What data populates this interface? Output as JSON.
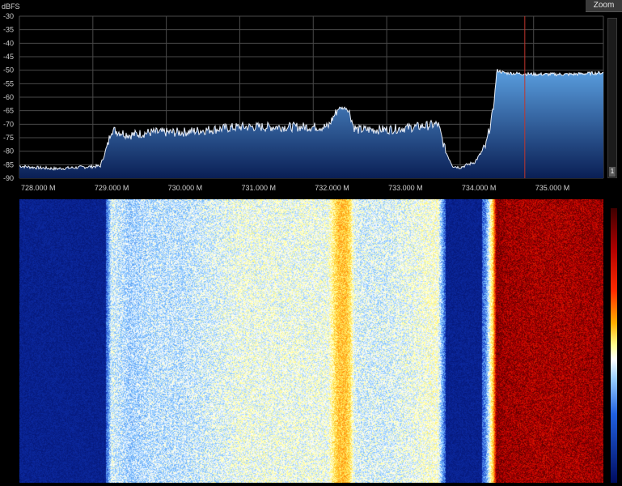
{
  "window": {
    "unit_label": "dBFS",
    "zoom_label": "Zoom",
    "scroll_indicator": "1"
  },
  "colors": {
    "background": "#000000",
    "grid": "#4a4a4a",
    "trace": "#e8eef8",
    "fill_top": "#5a9fe0",
    "fill_bottom": "#0a1f55",
    "marker": "#c0362c"
  },
  "chart_data": {
    "type": "area",
    "ylabel": "dBFS",
    "ylim": [
      -90,
      -30
    ],
    "y_ticks": [
      "-30",
      "-35",
      "-40",
      "-45",
      "-50",
      "-55",
      "-60",
      "-65",
      "-70",
      "-75",
      "-80",
      "-85",
      "-90"
    ],
    "xlim": [
      728.0,
      735.95
    ],
    "x_ticks": [
      {
        "value": 728.0,
        "label": "728.000 M"
      },
      {
        "value": 729.0,
        "label": "729.000 M"
      },
      {
        "value": 730.0,
        "label": "730.000 M"
      },
      {
        "value": 731.0,
        "label": "731.000 M"
      },
      {
        "value": 732.0,
        "label": "732.000 M"
      },
      {
        "value": 733.0,
        "label": "733.000 M"
      },
      {
        "value": 734.0,
        "label": "734.000 M"
      },
      {
        "value": 735.0,
        "label": "735.000 M"
      }
    ],
    "grid": true,
    "marker_freq": 734.88,
    "spectrum": {
      "freq": [
        728.0,
        728.2,
        728.5,
        728.8,
        729.1,
        729.2,
        729.25,
        729.5,
        729.8,
        730.2,
        730.6,
        731.0,
        731.4,
        731.8,
        732.2,
        732.3,
        732.35,
        732.45,
        732.5,
        732.55,
        732.6,
        733.0,
        733.4,
        733.7,
        733.8,
        733.9,
        734.0,
        734.2,
        734.35,
        734.45,
        734.5,
        734.6,
        735.0,
        735.5,
        735.9
      ],
      "dbfs": [
        -85.5,
        -86,
        -86.5,
        -86,
        -85.5,
        -78,
        -72,
        -74,
        -73,
        -73,
        -72,
        -71,
        -71,
        -71,
        -71,
        -66,
        -64,
        -64,
        -66,
        -71,
        -72,
        -72,
        -71,
        -70,
        -80,
        -85.5,
        -86,
        -84,
        -78,
        -65,
        -50,
        -51,
        -51.5,
        -51.5,
        -51
      ]
    }
  }
}
